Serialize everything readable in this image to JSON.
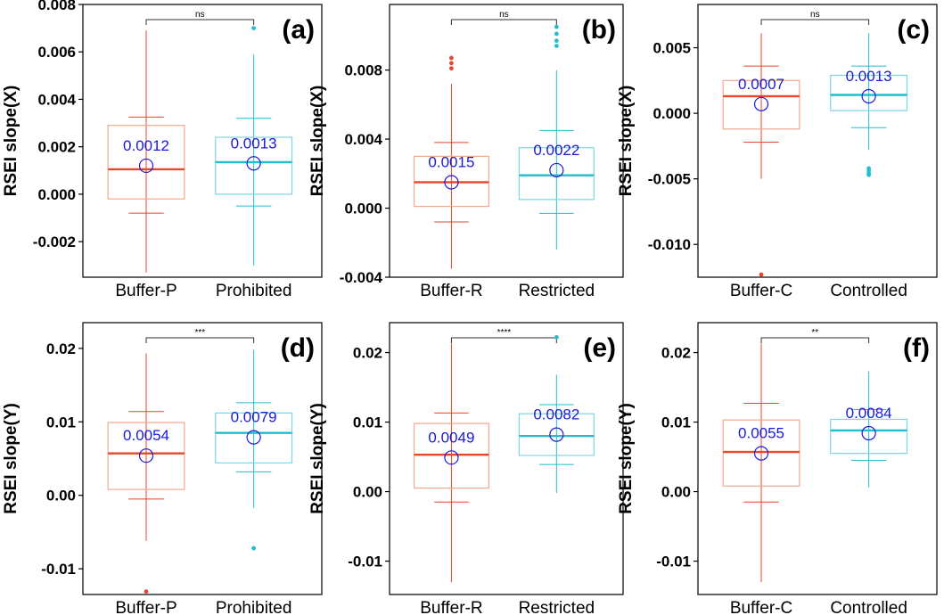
{
  "colors": {
    "group1": "#e8452c",
    "group2": "#1fbfcf",
    "box1": "#f2a98f",
    "box2": "#7fd6e2",
    "mean": "#1a1adb",
    "frame": "#000000"
  },
  "chart_data": [
    {
      "type": "box",
      "panel": "(a)",
      "ylabel": "RSEI slope(X)",
      "ylim": [
        -0.0035,
        0.008
      ],
      "ticks": [
        -0.002,
        0.0,
        0.002,
        0.004,
        0.006,
        0.008
      ],
      "tick_labels": [
        "-0.002",
        "0.000",
        "0.002",
        "0.004",
        "0.006",
        "0.008"
      ],
      "significance": "ns",
      "groups": [
        {
          "name": "Buffer-P",
          "whisker_low": -0.0033,
          "q1": -0.0002,
          "median": 0.00105,
          "q3": 0.0029,
          "whisker_high": 0.0069,
          "err_low": -0.0008,
          "err_high": 0.00325,
          "mean": 0.0012,
          "mean_label": "0.0012",
          "outliers": []
        },
        {
          "name": "Prohibited",
          "whisker_low": -0.003,
          "q1": 0.0,
          "median": 0.00135,
          "q3": 0.0024,
          "whisker_high": 0.0059,
          "err_low": -0.0005,
          "err_high": 0.0032,
          "mean": 0.0013,
          "mean_label": "0.0013",
          "outliers": [
            0.007
          ]
        }
      ]
    },
    {
      "type": "box",
      "panel": "(b)",
      "ylabel": "RSEI slope(X)",
      "ylim": [
        -0.004,
        0.0118
      ],
      "ticks": [
        -0.004,
        0.0,
        0.004,
        0.008
      ],
      "tick_labels": [
        "-0.004",
        "0.000",
        "0.004",
        "0.008"
      ],
      "significance": "ns",
      "groups": [
        {
          "name": "Buffer-R",
          "whisker_low": -0.0035,
          "q1": 0.0001,
          "median": 0.0015,
          "q3": 0.003,
          "whisker_high": 0.0072,
          "err_low": -0.0008,
          "err_high": 0.0038,
          "mean": 0.0015,
          "mean_label": "0.0015",
          "outliers": [
            0.0081,
            0.0084,
            0.0087
          ]
        },
        {
          "name": "Restricted",
          "whisker_low": -0.0024,
          "q1": 0.0005,
          "median": 0.0019,
          "q3": 0.0035,
          "whisker_high": 0.008,
          "err_low": -0.0003,
          "err_high": 0.0045,
          "mean": 0.0022,
          "mean_label": "0.0022",
          "outliers": [
            0.0094,
            0.0097,
            0.0101,
            0.0105
          ]
        }
      ]
    },
    {
      "type": "box",
      "panel": "(c)",
      "ylabel": "RSEI slope(X)",
      "ylim": [
        -0.0125,
        0.0083
      ],
      "ticks": [
        -0.01,
        -0.005,
        0.0,
        0.005
      ],
      "tick_labels": [
        "-0.010",
        "-0.005",
        "0.000",
        "0.005"
      ],
      "significance": "ns",
      "groups": [
        {
          "name": "Buffer-C",
          "whisker_low": -0.005,
          "q1": -0.0012,
          "median": 0.0013,
          "q3": 0.0025,
          "whisker_high": 0.0061,
          "err_low": -0.0022,
          "err_high": 0.0036,
          "mean": 0.0007,
          "mean_label": "0.0007",
          "outliers": [
            -0.0123
          ]
        },
        {
          "name": "Controlled",
          "whisker_low": -0.0028,
          "q1": 0.0002,
          "median": 0.0014,
          "q3": 0.0029,
          "whisker_high": 0.0061,
          "err_low": -0.0011,
          "err_high": 0.0036,
          "mean": 0.0013,
          "mean_label": "0.0013",
          "outliers": [
            -0.0042,
            -0.0044,
            -0.0046,
            -0.0047
          ]
        }
      ]
    },
    {
      "type": "box",
      "panel": "(d)",
      "ylabel": "RSEI slope(Y)",
      "ylim": [
        -0.0135,
        0.0235
      ],
      "ticks": [
        -0.01,
        0.0,
        0.01,
        0.02
      ],
      "tick_labels": [
        "-0.01",
        "0.00",
        "0.01",
        "0.02"
      ],
      "significance": "***",
      "groups": [
        {
          "name": "Buffer-P",
          "whisker_low": -0.0062,
          "q1": 0.0008,
          "median": 0.0057,
          "q3": 0.0099,
          "whisker_high": 0.0193,
          "err_low": -0.0005,
          "err_high": 0.0114,
          "mean": 0.0054,
          "mean_label": "0.0054",
          "outliers": [
            -0.0131
          ]
        },
        {
          "name": "Prohibited",
          "whisker_low": -0.0017,
          "q1": 0.0044,
          "median": 0.0085,
          "q3": 0.0112,
          "whisker_high": 0.0198,
          "err_low": 0.0032,
          "err_high": 0.0126,
          "mean": 0.0079,
          "mean_label": "0.0079",
          "outliers": [
            -0.0072
          ]
        }
      ]
    },
    {
      "type": "box",
      "panel": "(e)",
      "ylabel": "RSEI slope(Y)",
      "ylim": [
        -0.0148,
        0.0243
      ],
      "ticks": [
        -0.01,
        0.0,
        0.01,
        0.02
      ],
      "tick_labels": [
        "-0.01",
        "0.00",
        "0.01",
        "0.02"
      ],
      "significance": "****",
      "groups": [
        {
          "name": "Buffer-R",
          "whisker_low": -0.013,
          "q1": 0.0005,
          "median": 0.0053,
          "q3": 0.0098,
          "whisker_high": 0.0213,
          "err_low": -0.0015,
          "err_high": 0.0113,
          "mean": 0.0049,
          "mean_label": "0.0049",
          "outliers": []
        },
        {
          "name": "Restricted",
          "whisker_low": -0.0002,
          "q1": 0.0052,
          "median": 0.008,
          "q3": 0.0112,
          "whisker_high": 0.0168,
          "err_low": 0.0039,
          "err_high": 0.0125,
          "mean": 0.0082,
          "mean_label": "0.0082",
          "outliers": [
            0.0222
          ]
        }
      ]
    },
    {
      "type": "box",
      "panel": "(f)",
      "ylabel": "RSEI slope(Y)",
      "ylim": [
        -0.0148,
        0.0243
      ],
      "ticks": [
        -0.01,
        0.0,
        0.01,
        0.02
      ],
      "tick_labels": [
        "-0.01",
        "0.00",
        "0.01",
        "0.02"
      ],
      "significance": "**",
      "groups": [
        {
          "name": "Buffer-C",
          "whisker_low": -0.013,
          "q1": 0.0008,
          "median": 0.0057,
          "q3": 0.0103,
          "whisker_high": 0.0213,
          "err_low": -0.0015,
          "err_high": 0.0127,
          "mean": 0.0055,
          "mean_label": "0.0055",
          "outliers": []
        },
        {
          "name": "Controlled",
          "whisker_low": 0.0006,
          "q1": 0.0055,
          "median": 0.0088,
          "q3": 0.0104,
          "whisker_high": 0.0173,
          "err_low": 0.0045,
          "err_high": 0.0118,
          "mean": 0.0084,
          "mean_label": "0.0084",
          "outliers": []
        }
      ]
    }
  ]
}
